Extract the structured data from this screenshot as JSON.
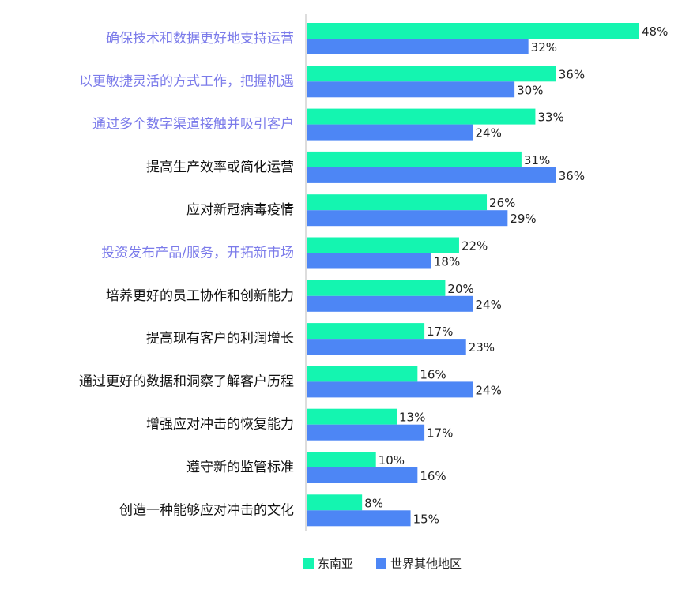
{
  "chart_data": {
    "type": "bar",
    "orientation": "horizontal",
    "categories": [
      "确保技术和数据更好地支持运营",
      "以更敏捷灵活的方式工作，把握机遇",
      "通过多个数字渠道接触并吸引客户",
      "提高生产效率或简化运营",
      "应对新冠病毒疫情",
      "投资发布产品/服务，开拓新市场",
      "培养更好的员工协作和创新能力",
      "提高现有客户的利润增长",
      "通过更好的数据和洞察了解客户历程",
      "增强应对冲击的恢复能力",
      "遵守新的监管标准",
      "创造一种能够应对冲击的文化"
    ],
    "highlighted": [
      true,
      true,
      true,
      false,
      false,
      true,
      false,
      false,
      false,
      false,
      false,
      false
    ],
    "series": [
      {
        "name": "东南亚",
        "color": "#14f5b0",
        "values": [
          48,
          36,
          33,
          31,
          26,
          22,
          20,
          17,
          16,
          13,
          10,
          8
        ],
        "labels": [
          "48%",
          "36%",
          "33%",
          "31%",
          "26%",
          "22%",
          "20%",
          "17%",
          "16%",
          "13%",
          "10%",
          "8%"
        ]
      },
      {
        "name": "世界其他地区",
        "color": "#4d86f5",
        "values": [
          32,
          30,
          24,
          36,
          29,
          18,
          24,
          23,
          24,
          17,
          16,
          15
        ],
        "labels": [
          "32%",
          "30%",
          "24%",
          "36%",
          "29%",
          "18%",
          "24%",
          "23%",
          "24%",
          "17%",
          "16%",
          "15%"
        ]
      }
    ],
    "xlim": [
      0,
      50
    ],
    "grid": false,
    "legend_position": "bottom-center",
    "colors": {
      "highlight_text": "#7b7bea",
      "normal_text": "#111111",
      "axis": "#bbbbbb"
    }
  }
}
